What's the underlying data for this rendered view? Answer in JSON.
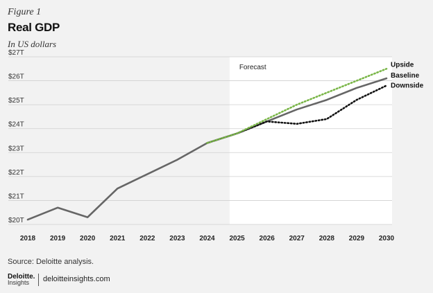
{
  "figure_label": "Figure 1",
  "title": "Real GDP",
  "subtitle": "In US dollars",
  "source": "Source: Deloitte analysis.",
  "brand": {
    "logo_main": "Deloitte.",
    "logo_sub": "Insights",
    "site": "deloitteinsights.com"
  },
  "colors": {
    "background": "#f2f2f2",
    "forecast_bg": "#ffffff",
    "baseline": "#666666",
    "upside": "#7ab648",
    "downside": "#111111",
    "grid": "#cfcfcf"
  },
  "chart_data": {
    "type": "line",
    "x": [
      2018,
      2019,
      2020,
      2021,
      2022,
      2023,
      2024,
      2025,
      2026,
      2027,
      2028,
      2029,
      2030
    ],
    "xlabel": "",
    "ylabel": "",
    "ylim": [
      20,
      27
    ],
    "y_ticks": [
      20,
      21,
      22,
      23,
      24,
      25,
      26,
      27
    ],
    "y_tick_labels": [
      "$20T",
      "$21T",
      "$22T",
      "$23T",
      "$24T",
      "$25T",
      "$26T",
      "$27T"
    ],
    "grid": true,
    "forecast_label": "Forecast",
    "forecast_start": 2024.75,
    "series": [
      {
        "name": "Baseline",
        "style": "solid",
        "x": [
          2018,
          2019,
          2020,
          2021,
          2022,
          2023,
          2024,
          2025,
          2026,
          2027,
          2028,
          2029,
          2030
        ],
        "values": [
          20.2,
          20.7,
          20.3,
          21.5,
          22.1,
          22.7,
          23.4,
          23.8,
          24.3,
          24.8,
          25.2,
          25.7,
          26.1
        ]
      },
      {
        "name": "Upside",
        "style": "dotted",
        "x": [
          2024,
          2025,
          2026,
          2027,
          2028,
          2029,
          2030
        ],
        "values": [
          23.4,
          23.8,
          24.4,
          25.0,
          25.5,
          26.0,
          26.5
        ]
      },
      {
        "name": "Downside",
        "style": "dotted",
        "x": [
          2024,
          2025,
          2026,
          2027,
          2028,
          2029,
          2030
        ],
        "values": [
          23.4,
          23.8,
          24.3,
          24.2,
          24.4,
          25.2,
          25.8
        ]
      }
    ]
  }
}
